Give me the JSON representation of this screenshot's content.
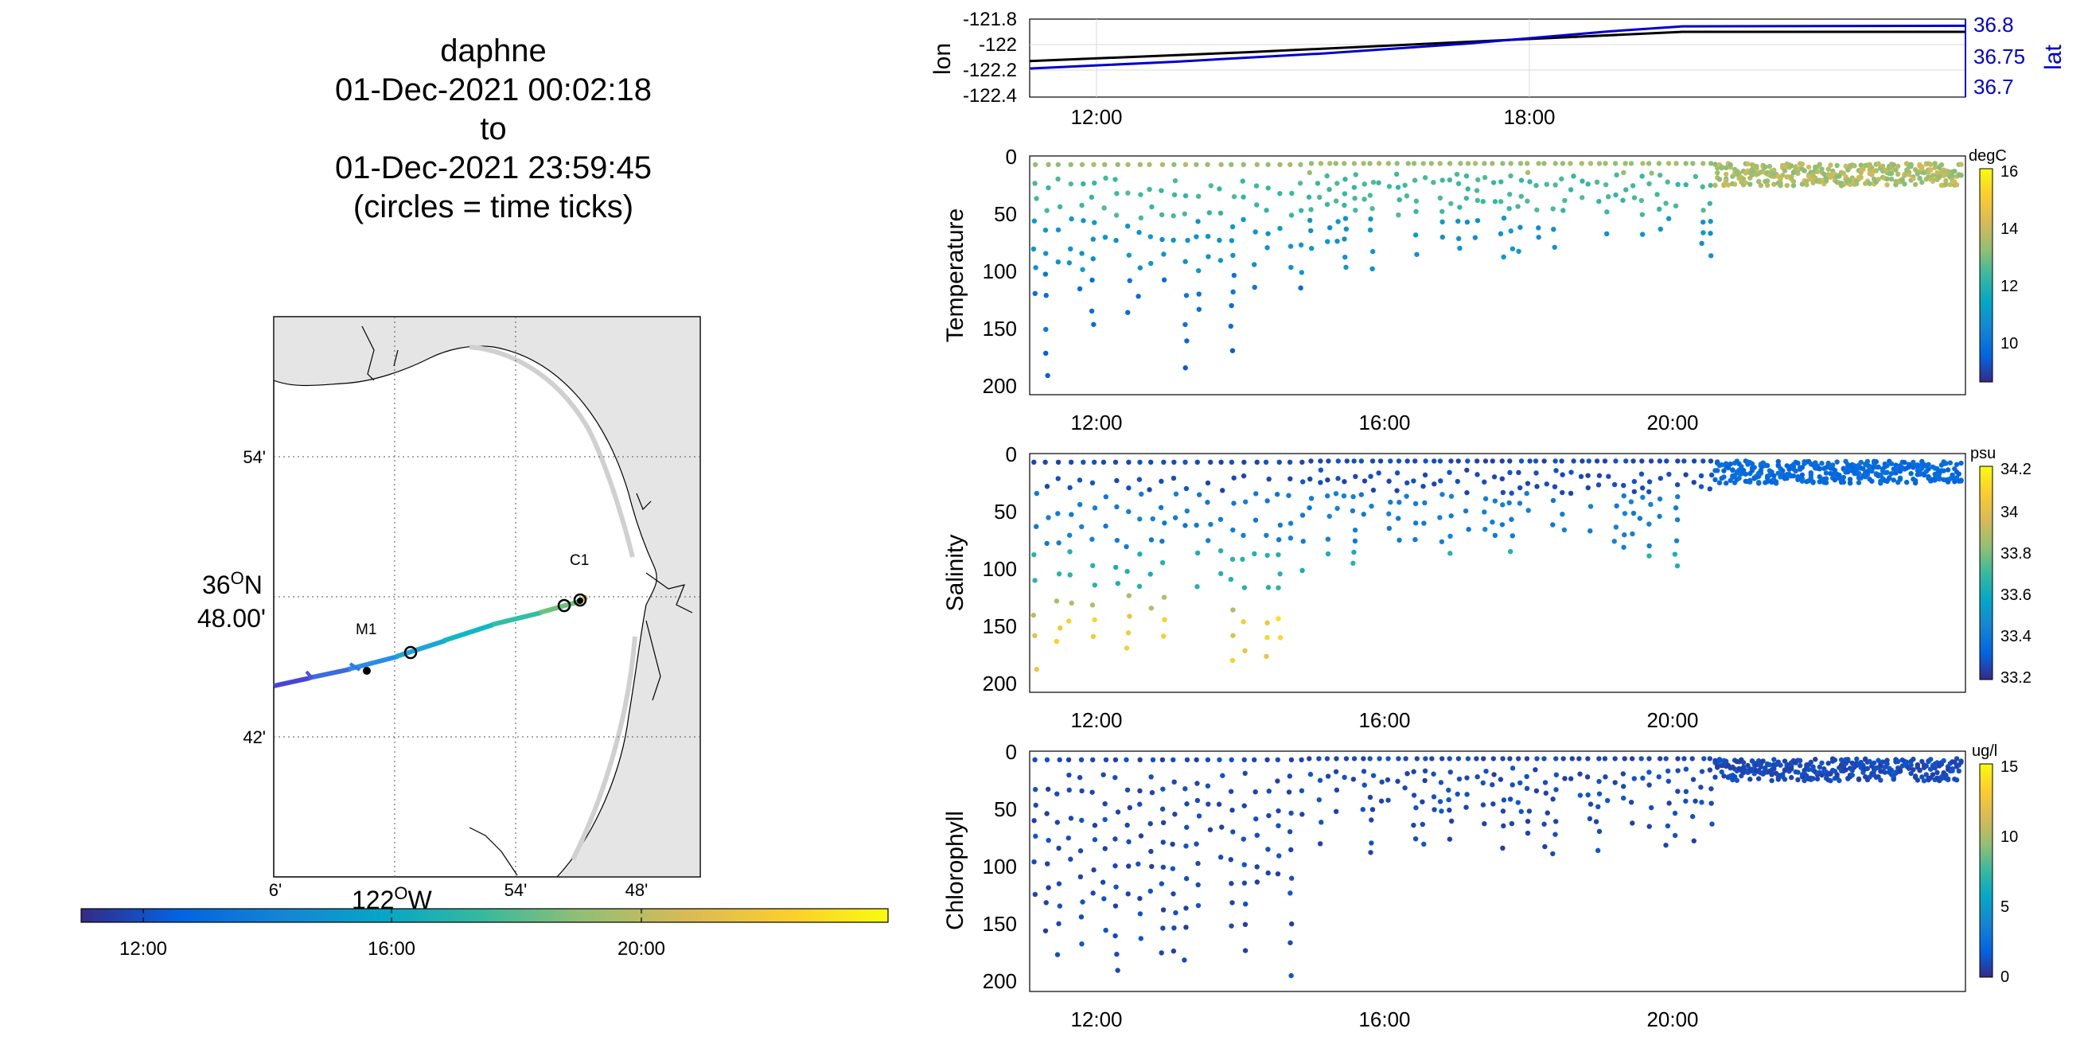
{
  "title": {
    "lines": [
      "daphne",
      "01-Dec-2021 00:02:18",
      "to",
      "01-Dec-2021 23:59:45",
      "(circles = time ticks)"
    ]
  },
  "map": {
    "lat_ticks": [
      "54'",
      "48.00'",
      "42'"
    ],
    "lat_deg_label": "36",
    "lat_deg_sup": "O",
    "lat_deg_hemi": "N",
    "lon_ticks": [
      "6'",
      "54'",
      "48'"
    ],
    "lon_deg_label": "122",
    "lon_deg_sup": "O",
    "lon_deg_hemi": "W",
    "stations": [
      "M1",
      "C1"
    ],
    "time_colorbar_ticks": [
      "12:00",
      "16:00",
      "20:00"
    ]
  },
  "chart_data": [
    {
      "type": "line",
      "name": "position",
      "ylabel": "lon",
      "ylabel_right": "lat",
      "left_ticks": [
        "-121.8",
        "-122",
        "-122.2",
        "-122.4"
      ],
      "right_ticks": [
        "36.8",
        "36.75",
        "36.7"
      ],
      "x_ticks": [
        "12:00",
        "18:00"
      ],
      "xlim_hours": [
        11.0,
        23.9
      ],
      "series": [
        {
          "name": "lon",
          "color": "#000000",
          "x": [
            11.0,
            14.0,
            17.0,
            20.0,
            23.9
          ],
          "y": [
            -122.13,
            -122.06,
            -121.98,
            -121.9,
            -121.9
          ]
        },
        {
          "name": "lat",
          "color": "#0000cc",
          "x": [
            11.0,
            13.0,
            15.0,
            17.0,
            19.0,
            20.0,
            23.9
          ],
          "y": [
            36.728,
            36.739,
            36.752,
            36.768,
            36.788,
            36.796,
            36.797
          ]
        }
      ]
    },
    {
      "type": "scatter",
      "name": "temperature",
      "ylabel": "Temperature",
      "unit": "degC",
      "y_ticks": [
        "0",
        "50",
        "100",
        "150",
        "200"
      ],
      "x_ticks": [
        "12:00",
        "16:00",
        "20:00"
      ],
      "cbar_ticks": [
        "16",
        "14",
        "12",
        "10"
      ],
      "clim": [
        8.5,
        16
      ],
      "depth_range": [
        0,
        200
      ],
      "note": "surface 13-15 degC, 100 m ~10 degC, 200 m ~9 degC"
    },
    {
      "type": "scatter",
      "name": "salinity",
      "ylabel": "Salinity",
      "unit": "psu",
      "y_ticks": [
        "0",
        "50",
        "100",
        "150",
        "200"
      ],
      "x_ticks": [
        "12:00",
        "16:00",
        "20:00"
      ],
      "cbar_ticks": [
        "34.2",
        "34",
        "33.8",
        "33.6",
        "33.4",
        "33.2"
      ],
      "clim": [
        33.15,
        34.25
      ],
      "depth_range": [
        0,
        200
      ]
    },
    {
      "type": "scatter",
      "name": "chlorophyll",
      "ylabel": "Chlorophyll",
      "unit": "ug/l",
      "y_ticks": [
        "0",
        "50",
        "100",
        "150",
        "200"
      ],
      "x_ticks": [
        "12:00",
        "16:00",
        "20:00"
      ],
      "cbar_ticks": [
        "15",
        "10",
        "5",
        "0"
      ],
      "clim": [
        0,
        15
      ],
      "depth_range": [
        0,
        200
      ]
    }
  ]
}
